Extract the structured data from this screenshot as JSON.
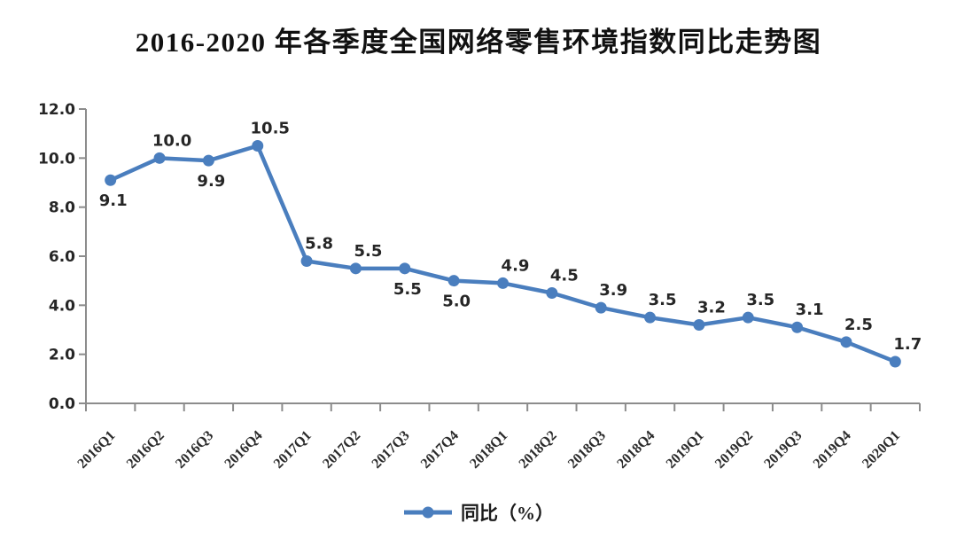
{
  "title": "2016-2020 年各季度全国网络零售环境指数同比走势图",
  "chart_data": {
    "type": "line",
    "title": "2016-2020 年各季度全国网络零售环境指数同比走势图",
    "categories": [
      "2016Q1",
      "2016Q2",
      "2016Q3",
      "2016Q4",
      "2017Q1",
      "2017Q2",
      "2017Q3",
      "2017Q4",
      "2018Q1",
      "2018Q2",
      "2018Q3",
      "2018Q4",
      "2019Q1",
      "2019Q2",
      "2019Q3",
      "2019Q4",
      "2020Q1"
    ],
    "series": [
      {
        "name": "同比（%）",
        "values": [
          9.1,
          10.0,
          9.9,
          10.5,
          5.8,
          5.5,
          5.5,
          5.0,
          4.9,
          4.5,
          3.9,
          3.5,
          3.2,
          3.5,
          3.1,
          2.5,
          1.7
        ],
        "labels": [
          "9.1",
          "10.0",
          "9.9",
          "10.5",
          "5.8",
          "5.5",
          "5.5",
          "5.0",
          "4.9",
          "4.5",
          "3.9",
          "3.5",
          "3.2",
          "3.5",
          "3.1",
          "2.5",
          "1.7"
        ],
        "label_positions": [
          "below",
          "above",
          "below",
          "above",
          "above",
          "above",
          "below",
          "below",
          "above",
          "above",
          "above",
          "above",
          "above",
          "above",
          "above",
          "above",
          "above"
        ]
      }
    ],
    "xlabel": "",
    "ylabel": "",
    "ylim": [
      0,
      12
    ],
    "ytick_labels": [
      "0.0",
      "2.0",
      "4.0",
      "6.0",
      "8.0",
      "10.0",
      "12.0"
    ],
    "grid": false,
    "legend_position": "bottom",
    "colors": {
      "line": "#4A7EBE",
      "axis": "#8C8C8C",
      "label_text": "#262626"
    }
  },
  "legend": {
    "label": "同比（%）"
  }
}
